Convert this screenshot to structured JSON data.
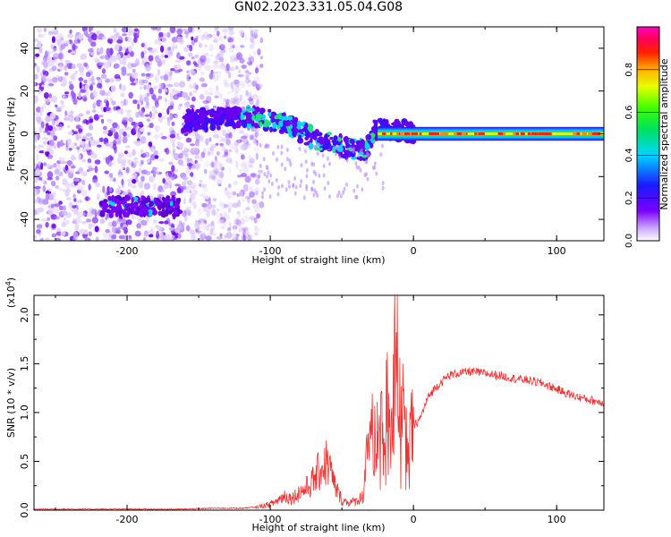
{
  "title": "GN02.2023.331.05.04.G08",
  "chart_data": [
    {
      "type": "heatmap",
      "xlabel": "Height of straight line (km)",
      "ylabel": "Frequency (Hz)",
      "xlim": [
        -265,
        133
      ],
      "ylim": [
        -50,
        50
      ],
      "xticks": [
        -200,
        -100,
        0,
        100
      ],
      "yticks": [
        -40,
        -20,
        0,
        20,
        40
      ],
      "colorbar": {
        "label": "Normalized spectral amplitude",
        "range": [
          0,
          1
        ],
        "ticks": [
          "0.0",
          "0.2",
          "0.4",
          "0.6",
          "0.8"
        ],
        "colormap": "rainbow (white-purple-blue-cyan-green-yellow-red-magenta)"
      },
      "features": [
        {
          "name": "noise",
          "x_range": [
            -265,
            -118
          ],
          "y_range": [
            -50,
            50
          ],
          "amplitude": 0.1
        },
        {
          "name": "low-frequency band",
          "x_range": [
            -200,
            -170
          ],
          "y_center": -34,
          "amplitude": 0.3
        },
        {
          "name": "descending signal",
          "points": [
            [
              -160,
              6
            ],
            [
              -110,
              8
            ],
            [
              -90,
              5
            ],
            [
              -70,
              -2
            ],
            [
              -50,
              -6
            ],
            [
              -33,
              -8
            ],
            [
              -27,
              2
            ],
            [
              0,
              1
            ]
          ],
          "amplitude": 0.3
        },
        {
          "name": "carrier line",
          "x_range": [
            -25,
            133
          ],
          "y_center": 0,
          "amplitude": 0.9
        }
      ]
    },
    {
      "type": "line",
      "xlabel": "Height of straight line (km)",
      "ylabel": "SNR (10 * v/v)",
      "y_multiplier": "(x10^4)",
      "xlim": [
        -265,
        133
      ],
      "ylim": [
        0,
        2.2
      ],
      "xticks": [
        -200,
        -100,
        0,
        100
      ],
      "yticks": [
        "0.0",
        "0.5",
        "1.0",
        "1.5",
        "2.0"
      ],
      "color": "#ee3333",
      "series": [
        {
          "x": [
            -265,
            -240,
            -220,
            -200,
            -180,
            -160,
            -140,
            -120,
            -110,
            -100,
            -95,
            -90,
            -85,
            -80,
            -75,
            -70,
            -65,
            -60,
            -57,
            -55,
            -50,
            -45,
            -40,
            -35,
            -32,
            -30,
            -28,
            -25,
            -22,
            -20,
            -17,
            -15,
            -13,
            -12,
            -11,
            -10,
            -8,
            -5,
            0,
            5,
            10,
            15,
            20,
            25,
            30,
            40,
            50,
            60,
            70,
            80,
            90,
            100,
            110,
            120,
            133
          ],
          "y": [
            0.01,
            0.01,
            0.01,
            0.01,
            0.01,
            0.01,
            0.02,
            0.02,
            0.03,
            0.06,
            0.1,
            0.15,
            0.12,
            0.18,
            0.22,
            0.3,
            0.42,
            0.5,
            0.35,
            0.25,
            0.1,
            0.08,
            0.09,
            0.15,
            0.8,
            0.6,
            0.9,
            0.7,
            1.1,
            0.8,
            1.5,
            1.3,
            2.2,
            1.2,
            1.55,
            1.0,
            1.1,
            0.75,
            0.85,
            0.95,
            1.15,
            1.25,
            1.32,
            1.38,
            1.4,
            1.42,
            1.4,
            1.38,
            1.35,
            1.33,
            1.3,
            1.24,
            1.18,
            1.14,
            1.1
          ]
        }
      ]
    }
  ]
}
